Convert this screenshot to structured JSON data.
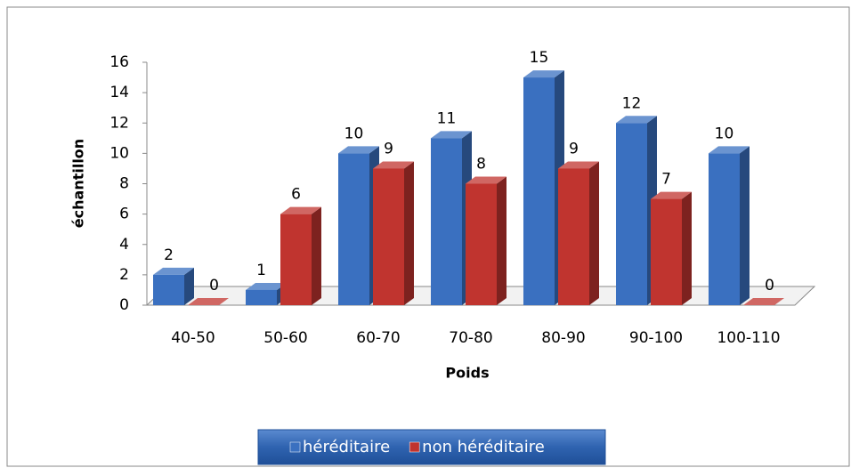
{
  "chart_data": {
    "type": "bar3d",
    "categories": [
      "40-50",
      "50-60",
      "60-70",
      "70-80",
      "80-90",
      "90-100",
      "100-110"
    ],
    "series": [
      {
        "name": "héréditaire",
        "color": "#3a70c0",
        "values": [
          2,
          1,
          10,
          11,
          15,
          12,
          10
        ]
      },
      {
        "name": "non héréditaire",
        "color": "#c0342f",
        "values": [
          0,
          6,
          9,
          8,
          9,
          7,
          0
        ]
      }
    ],
    "ylim": [
      0,
      16
    ],
    "yticks": [
      0,
      2,
      4,
      6,
      8,
      10,
      12,
      14,
      16
    ],
    "xlabel": "Poids",
    "ylabel": "échantillon",
    "legend": "bottom"
  }
}
